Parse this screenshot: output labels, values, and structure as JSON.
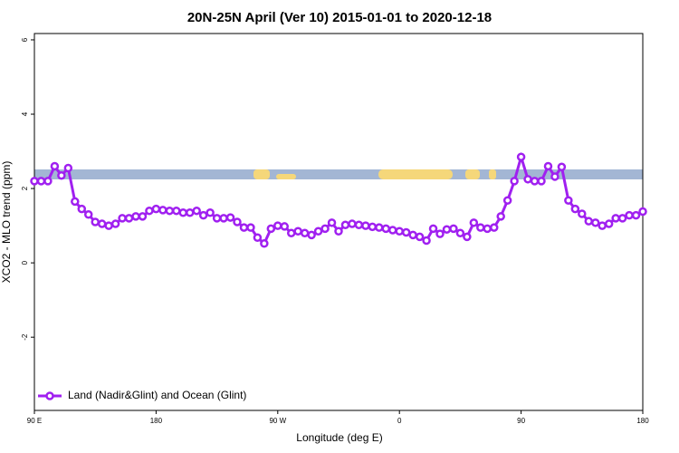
{
  "chart_data": {
    "type": "line",
    "title": "20N-25N April (Ver 10)   2015-01-01 to 2020-12-18",
    "x_label": "Longitude (deg E)",
    "y_label": "XCO2 - MLO trend (ppm)",
    "x": [
      90,
      95,
      100,
      105,
      110,
      115,
      120,
      125,
      130,
      135,
      140,
      145,
      150,
      155,
      160,
      165,
      170,
      175,
      180,
      185,
      190,
      195,
      200,
      205,
      210,
      215,
      220,
      225,
      230,
      235,
      240,
      245,
      250,
      255,
      260,
      265,
      270,
      275,
      280,
      285,
      290,
      295,
      300,
      305,
      310,
      315,
      320,
      325,
      330,
      335,
      340,
      345,
      350,
      355,
      360,
      365,
      370,
      375,
      380,
      385,
      390,
      395,
      400,
      405,
      410,
      415,
      420,
      425,
      430,
      435,
      440,
      445,
      450,
      455,
      460,
      465,
      470,
      475,
      480,
      485,
      490,
      495,
      500,
      505,
      510,
      515,
      520,
      525,
      530,
      535,
      540
    ],
    "series": [
      {
        "name": "Land (Nadir&Glint) and Ocean (Glint)",
        "color": "#a020f0",
        "values": [
          2.2,
          2.2,
          2.2,
          2.6,
          2.35,
          2.55,
          1.65,
          1.45,
          1.3,
          1.1,
          1.05,
          1.0,
          1.05,
          1.2,
          1.2,
          1.25,
          1.25,
          1.4,
          1.45,
          1.42,
          1.4,
          1.4,
          1.35,
          1.35,
          1.4,
          1.28,
          1.35,
          1.2,
          1.2,
          1.22,
          1.1,
          0.95,
          0.95,
          0.68,
          0.52,
          0.92,
          1.0,
          0.98,
          0.8,
          0.85,
          0.8,
          0.75,
          0.85,
          0.92,
          1.08,
          0.85,
          1.02,
          1.05,
          1.02,
          1.0,
          0.97,
          0.95,
          0.92,
          0.88,
          0.85,
          0.82,
          0.75,
          0.7,
          0.6,
          0.92,
          0.78,
          0.9,
          0.92,
          0.8,
          0.7,
          1.08,
          0.95,
          0.92,
          0.95,
          1.25,
          1.68,
          2.2,
          2.85,
          2.25,
          2.2,
          2.2,
          2.6,
          2.32,
          2.58,
          1.68,
          1.45,
          1.32,
          1.12,
          1.08,
          1.0,
          1.05,
          1.2,
          1.2,
          1.28,
          1.28,
          1.38
        ]
      }
    ],
    "xlim": [
      90,
      540
    ],
    "xticks": [
      {
        "value": 90,
        "label": "90 E"
      },
      {
        "value": 180,
        "label": "180"
      },
      {
        "value": 270,
        "label": "90 W"
      },
      {
        "value": 360,
        "label": "0"
      },
      {
        "value": 450,
        "label": "90"
      },
      {
        "value": 540,
        "label": "180"
      }
    ],
    "ylim": [
      -3.97,
      6.17
    ],
    "yticks": [
      -2,
      0,
      2,
      4,
      6
    ],
    "legend": "bottomleft"
  }
}
